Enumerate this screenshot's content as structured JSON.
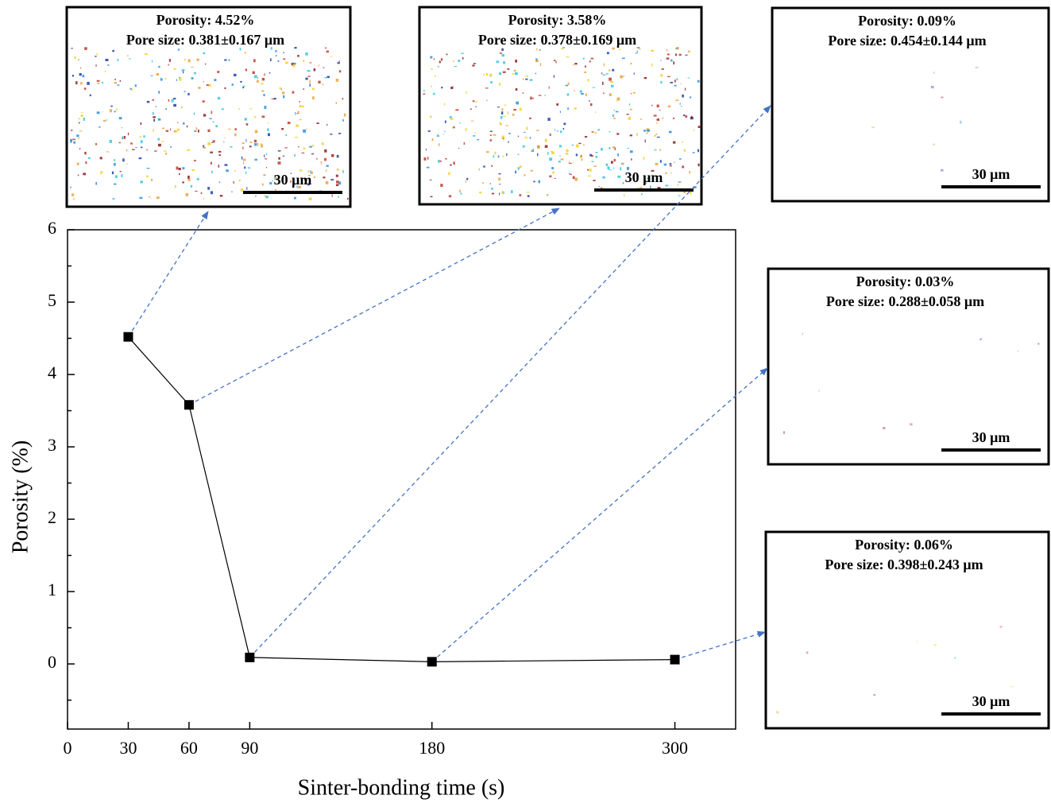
{
  "chart_data": {
    "type": "line",
    "x_label": "Sinter-bonding time (s)",
    "y_label": "Porosity (%)",
    "x": [
      30,
      60,
      90,
      180,
      300
    ],
    "series": [
      {
        "color": "#000000",
        "values": [
          4.52,
          3.58,
          0.09,
          0.03,
          0.06
        ]
      }
    ],
    "xlim": [
      0,
      330
    ],
    "xticks": [
      0,
      30,
      60,
      90,
      180,
      300
    ],
    "ylim": [
      -0.9,
      6
    ],
    "yticks": [
      0,
      1,
      2,
      3,
      4,
      5,
      6
    ],
    "yminorticks": [
      -0.5,
      0.5,
      1.5,
      2.5,
      3.5,
      4.5,
      5.5
    ],
    "arrow_color": "#4472c4",
    "insets": [
      {
        "porosity": "Porosity: 4.52%",
        "pore_size": "Pore size: 0.381±0.167 μm",
        "scale_bar": "30 μm"
      },
      {
        "porosity": "Porosity: 3.58%",
        "pore_size": "Pore size: 0.378±0.169 μm",
        "scale_bar": "30 μm"
      },
      {
        "porosity": "Porosity: 0.09%",
        "pore_size": "Pore size: 0.454±0.144 μm",
        "scale_bar": "30 μm"
      },
      {
        "porosity": "Porosity: 0.03%",
        "pore_size": "Pore size: 0.288±0.058 μm",
        "scale_bar": "30 μm"
      },
      {
        "porosity": "Porosity: 0.06%",
        "pore_size": "Pore size: 0.398±0.243 μm",
        "scale_bar": "30 μm"
      }
    ]
  }
}
